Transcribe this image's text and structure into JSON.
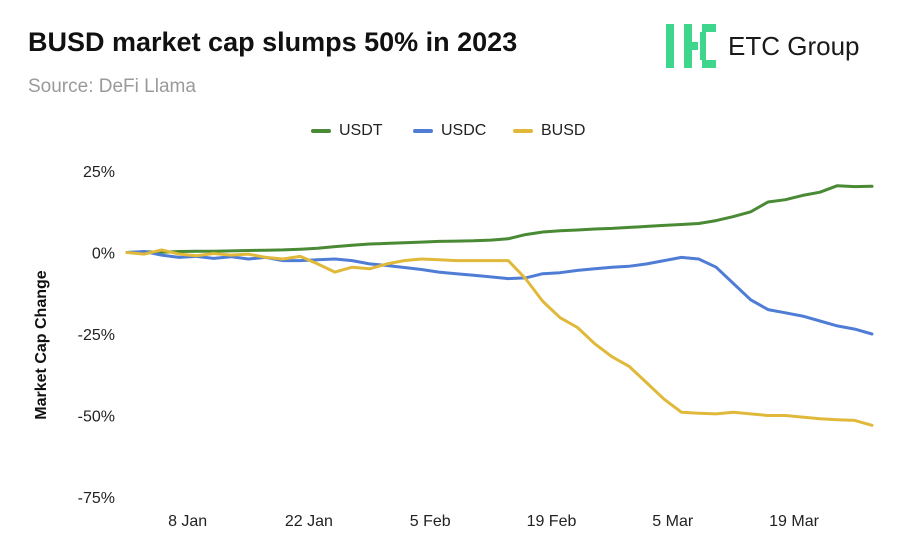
{
  "header": {
    "title": "BUSD market cap slumps 50% in 2023",
    "source": "Source: DeFi Llama"
  },
  "logo": {
    "text": "ETC Group",
    "color": "#3dd68c"
  },
  "chart_data": {
    "type": "line",
    "ylabel": "Market Cap Change",
    "y_unit": "%",
    "ylim": [
      -75,
      25
    ],
    "y_ticks": [
      25,
      0,
      -25,
      -50,
      -75
    ],
    "y_tick_labels": [
      "25%",
      "0%",
      "-25%",
      "-50%",
      "-75%"
    ],
    "x_range": [
      "2023-01-01",
      "2023-03-28"
    ],
    "x_ticks": [
      "2023-01-08",
      "2023-01-22",
      "2023-02-05",
      "2023-02-19",
      "2023-03-05",
      "2023-03-19"
    ],
    "x_tick_labels": [
      "8 Jan",
      "22 Jan",
      "5 Feb",
      "19 Feb",
      "5 Mar",
      "19 Mar"
    ],
    "grid": false,
    "legend_position": "top-center",
    "x": [
      "2023-01-01",
      "2023-01-03",
      "2023-01-05",
      "2023-01-07",
      "2023-01-09",
      "2023-01-11",
      "2023-01-13",
      "2023-01-15",
      "2023-01-17",
      "2023-01-19",
      "2023-01-21",
      "2023-01-23",
      "2023-01-25",
      "2023-01-27",
      "2023-01-29",
      "2023-01-31",
      "2023-02-02",
      "2023-02-04",
      "2023-02-06",
      "2023-02-08",
      "2023-02-10",
      "2023-02-12",
      "2023-02-14",
      "2023-02-16",
      "2023-02-18",
      "2023-02-20",
      "2023-02-22",
      "2023-02-24",
      "2023-02-26",
      "2023-02-28",
      "2023-03-02",
      "2023-03-04",
      "2023-03-06",
      "2023-03-08",
      "2023-03-10",
      "2023-03-12",
      "2023-03-14",
      "2023-03-16",
      "2023-03-18",
      "2023-03-20",
      "2023-03-22",
      "2023-03-24",
      "2023-03-26",
      "2023-03-28"
    ],
    "series": [
      {
        "name": "USDT",
        "color": "#4a8a35",
        "values": [
          0,
          0.2,
          0.1,
          0.3,
          0.4,
          0.4,
          0.5,
          0.6,
          0.7,
          0.8,
          1.0,
          1.3,
          1.8,
          2.2,
          2.6,
          2.8,
          3.0,
          3.2,
          3.4,
          3.5,
          3.6,
          3.8,
          4.2,
          5.5,
          6.3,
          6.7,
          6.9,
          7.2,
          7.4,
          7.7,
          8.0,
          8.3,
          8.6,
          8.9,
          9.8,
          11.0,
          12.5,
          15.5,
          16.2,
          17.5,
          18.5,
          20.5,
          20.2,
          20.3
        ]
      },
      {
        "name": "USDC",
        "color": "#4f7dd6",
        "values": [
          0,
          0.3,
          -0.8,
          -1.5,
          -1.2,
          -1.8,
          -1.3,
          -2.0,
          -1.5,
          -2.5,
          -2.5,
          -2.2,
          -2.0,
          -2.5,
          -3.5,
          -4.0,
          -4.6,
          -5.2,
          -6.0,
          -6.5,
          -7.0,
          -7.5,
          -8.0,
          -7.8,
          -6.5,
          -6.2,
          -5.5,
          -5.0,
          -4.5,
          -4.2,
          -3.5,
          -2.5,
          -1.5,
          -2.0,
          -4.5,
          -9.5,
          -14.5,
          -17.5,
          -18.5,
          -19.5,
          -21.0,
          -22.5,
          -23.5,
          -25.0
        ]
      },
      {
        "name": "BUSD",
        "color": "#e0b93a",
        "values": [
          0,
          -0.5,
          0.8,
          -0.5,
          -1.0,
          -0.3,
          -0.8,
          -0.5,
          -1.5,
          -2.0,
          -1.2,
          -3.5,
          -6.0,
          -4.5,
          -5.0,
          -3.5,
          -2.5,
          -2.0,
          -2.2,
          -2.5,
          -2.5,
          -2.5,
          -2.5,
          -8.0,
          -15.0,
          -20.0,
          -23.0,
          -28.0,
          -32.0,
          -35.0,
          -40.0,
          -45.0,
          -49.0,
          -49.3,
          -49.5,
          -49.0,
          -49.5,
          -50.0,
          -50.0,
          -50.5,
          -51.0,
          -51.3,
          -51.5,
          -53.0
        ]
      }
    ]
  }
}
